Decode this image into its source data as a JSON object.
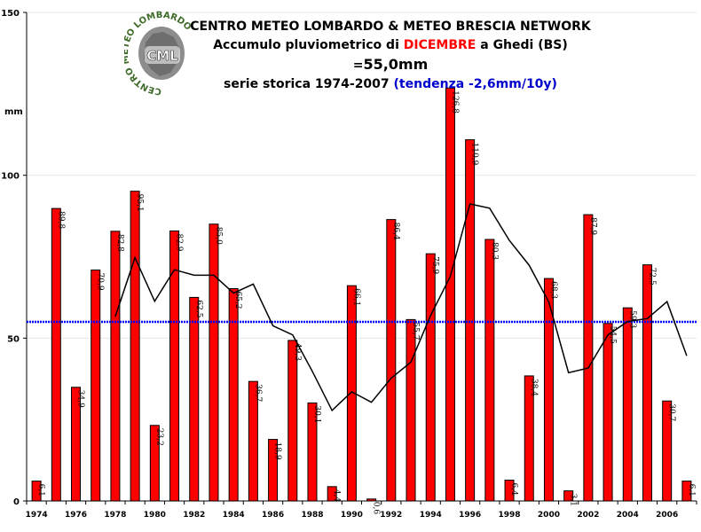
{
  "title": {
    "line1": "CENTRO METEO LOMBARDO & METEO BRESCIA NETWORK",
    "line2_prefix": "Accumulo pluviometrico di ",
    "line2_month": "DICEMBRE",
    "line2_mid": " a Ghedi (BS) =",
    "line2_value": "55,0mm",
    "line3_prefix": "serie storica 1974-2007 ",
    "line3_trend": "(tendenza -2,6mm/10y)"
  },
  "logo": {
    "text": "CML",
    "ring_text": "CENTRO METEO LOMBARDO"
  },
  "colors": {
    "bar_fill": "#ff0000",
    "bar_stroke": "#000000",
    "trend_line": "#000000",
    "mean_line": "#0000ff",
    "grid": "#e6e6e6",
    "title_accent_red": "#ff0000",
    "title_accent_blue": "#0000cc"
  },
  "chart_data": {
    "type": "bar",
    "ylabel": "mm",
    "ylim": [
      0,
      150
    ],
    "yticks": [
      0,
      50,
      100,
      150
    ],
    "xtick_labels": [
      "1974",
      "1976",
      "1978",
      "1980",
      "1982",
      "1984",
      "1986",
      "1988",
      "1990",
      "1992",
      "1994",
      "1996",
      "1998",
      "2000",
      "2002",
      "2004",
      "2006"
    ],
    "categories": [
      1974,
      1975,
      1976,
      1977,
      1978,
      1979,
      1980,
      1981,
      1982,
      1983,
      1984,
      1985,
      1986,
      1987,
      1988,
      1989,
      1990,
      1991,
      1992,
      1993,
      1994,
      1995,
      1996,
      1997,
      1998,
      1999,
      2000,
      2001,
      2002,
      2003,
      2004,
      2005,
      2006,
      2007
    ],
    "values": [
      6.1,
      89.8,
      34.9,
      70.9,
      82.8,
      95.1,
      23.2,
      82.9,
      62.5,
      85.0,
      65.2,
      36.7,
      18.9,
      49.3,
      30.1,
      4.4,
      66.1,
      0.6,
      86.4,
      55.7,
      75.9,
      126.8,
      110.9,
      80.3,
      6.4,
      38.4,
      68.3,
      3.1,
      87.9,
      54.5,
      59.3,
      72.5,
      30.7,
      6.1
    ],
    "value_labels": [
      "6,1",
      "89,8",
      "34,9",
      "70,9",
      "82,8",
      "95,1",
      "23,2",
      "82,9",
      "62,5",
      "85,0",
      "65,2",
      "36,7",
      "18,9",
      "49,3",
      "30,1",
      "4,4",
      "66,1",
      "0,6",
      "86,4",
      "55,7",
      "75,9",
      "126,8",
      "110,9",
      "80,3",
      "6,4",
      "38,4",
      "68,3",
      "3,1",
      "87,9",
      "54,5",
      "59,3",
      "72,5",
      "30,7",
      "6,1"
    ],
    "moving_average": {
      "x": [
        1978,
        1979,
        1980,
        1981,
        1982,
        1983,
        1984,
        1985,
        1986,
        1987,
        1988,
        1989,
        1990,
        1991,
        1992,
        1993,
        1994,
        1995,
        1996,
        1997,
        1998,
        1999,
        2000,
        2001,
        2002,
        2003,
        2004,
        2005,
        2006,
        2007
      ],
      "values": [
        56.6,
        74.7,
        61.3,
        71.0,
        69.3,
        69.3,
        63.8,
        66.6,
        53.8,
        51.0,
        39.8,
        27.8,
        33.5,
        30.3,
        37.7,
        42.6,
        56.9,
        68.9,
        91.2,
        89.9,
        80.0,
        72.4,
        61.1,
        39.4,
        40.8,
        51.0,
        55.1,
        56.0,
        61.2,
        44.6
      ]
    },
    "mean_line": 55.0
  }
}
